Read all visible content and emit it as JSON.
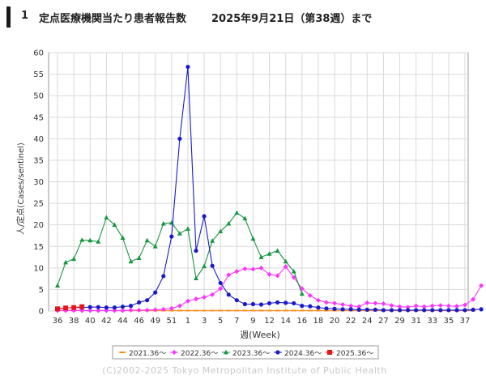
{
  "header": {
    "number": "1",
    "title": "定点医療機関当たり患者報告数",
    "date_label": "2025年9月21日（第38週）まで"
  },
  "colors": {
    "s2021": "#ff8c1a",
    "s2022": "#ff33ff",
    "s2023": "#1a9641",
    "s2024": "#1a1acc",
    "s2025": "#e8141c",
    "grid": "#d9d9d9",
    "axis": "#666666"
  },
  "copyright": "(C)2002-2025 Tokyo Metropolitan Institute of Public Health",
  "chart_data": {
    "type": "line",
    "title": "",
    "xlabel": "週(Week)",
    "ylabel": "人/定点(Cases/sentinel)",
    "ylim": [
      0,
      60
    ],
    "yticks": [
      0,
      5,
      10,
      15,
      20,
      25,
      30,
      35,
      40,
      45,
      50,
      55,
      60
    ],
    "grid": true,
    "legend_position": "bottom",
    "x_tick_labels": [
      "36",
      "38",
      "40",
      "42",
      "44",
      "46",
      "49",
      "51",
      "1",
      "3",
      "5",
      "7",
      "9",
      "12",
      "14",
      "16",
      "18",
      "20",
      "22",
      "24",
      "27",
      "29",
      "31",
      "33",
      "35",
      "37"
    ],
    "series": [
      {
        "name": "2021.36～",
        "color_key": "s2021",
        "marker": "dash",
        "values": [
          0.1,
          0.1,
          0.1,
          0.1,
          0.1,
          0.1,
          0.1,
          0.1,
          0.1,
          0.1,
          0.1,
          0.1,
          0.1,
          0.1,
          0.1,
          0.1,
          0.1,
          0.1,
          0.1,
          0.1,
          0.1,
          0.1,
          0.1,
          0.1,
          0.1,
          0.1,
          0.1,
          0.1,
          0.1,
          0.1,
          0.1,
          0.1,
          0.1,
          0.1,
          0.1,
          0.1,
          0.1,
          0.1,
          0.1,
          0.1,
          0.1,
          0.1,
          0.1,
          0.1,
          0.1,
          0.1,
          0.1,
          0.1,
          0.1,
          0.1,
          0.1,
          0.1
        ]
      },
      {
        "name": "2022.36～",
        "color_key": "s2022",
        "marker": "diamond",
        "values": [
          0.1,
          0.1,
          0.1,
          0.1,
          0.1,
          0.1,
          0.1,
          0.1,
          0.1,
          0.2,
          0.2,
          0.2,
          0.3,
          0.4,
          0.6,
          1.2,
          2.3,
          2.8,
          3.2,
          3.8,
          5.2,
          8.4,
          9.2,
          9.8,
          9.7,
          10.0,
          8.5,
          8.2,
          10.3,
          7.8,
          5.2,
          3.6,
          2.5,
          2.0,
          1.8,
          1.5,
          1.2,
          1.0,
          1.9,
          1.8,
          1.7,
          1.3,
          1.0,
          0.9,
          1.2,
          1.0,
          1.2,
          1.3,
          1.2,
          1.1,
          1.4,
          2.7,
          5.9
        ]
      },
      {
        "name": "2023.36～",
        "color_key": "s2023",
        "marker": "triangle",
        "values": [
          5.9,
          11.3,
          12.1,
          16.5,
          16.4,
          16.1,
          21.7,
          20.0,
          17.0,
          11.5,
          12.3,
          16.4,
          15.0,
          20.3,
          20.5,
          18.0,
          19.1,
          7.6,
          10.4,
          16.3,
          18.5,
          20.3,
          22.8,
          21.5,
          16.8,
          12.5,
          13.3,
          14.0,
          11.5,
          9.2,
          4.0
        ]
      },
      {
        "name": "2024.36～",
        "color_key": "s2024",
        "marker": "circle",
        "values": [
          0.5,
          0.7,
          0.8,
          0.8,
          0.9,
          0.9,
          0.8,
          0.8,
          1.0,
          1.2,
          2.0,
          2.5,
          4.3,
          8.1,
          17.3,
          40.0,
          56.7,
          14.0,
          22.0,
          10.5,
          6.5,
          3.8,
          2.5,
          1.6,
          1.6,
          1.5,
          1.8,
          2.0,
          1.9,
          1.8,
          1.2,
          1.1,
          0.8,
          0.6,
          0.5,
          0.4,
          0.4,
          0.3,
          0.3,
          0.3,
          0.2,
          0.2,
          0.2,
          0.2,
          0.2,
          0.2,
          0.2,
          0.2,
          0.2,
          0.2,
          0.2,
          0.3,
          0.4
        ]
      },
      {
        "name": "2025.36～",
        "color_key": "s2025",
        "marker": "square",
        "values": [
          0.5,
          0.7,
          0.8,
          1.0
        ]
      }
    ]
  }
}
